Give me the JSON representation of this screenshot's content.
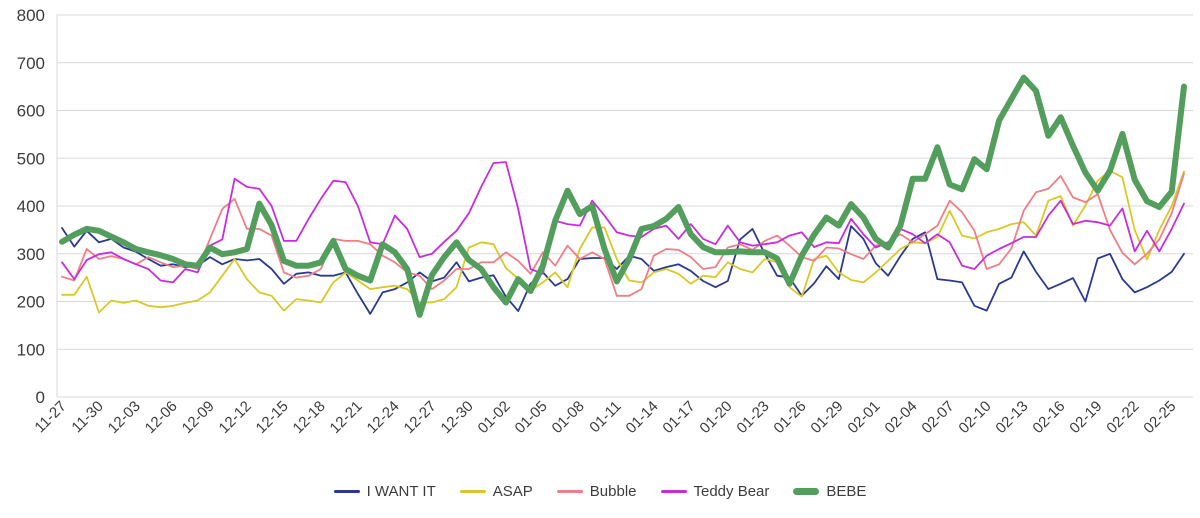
{
  "chart_data": {
    "type": "line",
    "title": "",
    "xlabel": "",
    "ylabel": "",
    "ylim": [
      0,
      800
    ],
    "y_ticks": [
      0,
      100,
      200,
      300,
      400,
      500,
      600,
      700,
      800
    ],
    "x_tick_every": 3,
    "grid": "horizontal",
    "legend_position": "bottom-center",
    "grid_color": "#d9d9d9",
    "axis_text_color": "#3d3d3d",
    "x": [
      "11-27",
      "11-28",
      "11-29",
      "11-30",
      "12-01",
      "12-02",
      "12-03",
      "12-04",
      "12-05",
      "12-06",
      "12-07",
      "12-08",
      "12-09",
      "12-10",
      "12-11",
      "12-12",
      "12-13",
      "12-14",
      "12-15",
      "12-16",
      "12-17",
      "12-18",
      "12-19",
      "12-20",
      "12-21",
      "12-22",
      "12-23",
      "12-24",
      "12-25",
      "12-26",
      "12-27",
      "12-28",
      "12-29",
      "12-30",
      "12-31",
      "01-01",
      "01-02",
      "01-03",
      "01-04",
      "01-05",
      "01-06",
      "01-07",
      "01-08",
      "01-09",
      "01-10",
      "01-11",
      "01-12",
      "01-13",
      "01-14",
      "01-15",
      "01-16",
      "01-17",
      "01-18",
      "01-19",
      "01-20",
      "01-21",
      "01-22",
      "01-23",
      "01-24",
      "01-25",
      "01-26",
      "01-27",
      "01-28",
      "01-29",
      "01-30",
      "01-31",
      "02-01",
      "02-02",
      "02-03",
      "02-04",
      "02-05",
      "02-06",
      "02-07",
      "02-08",
      "02-09",
      "02-10",
      "02-11",
      "02-12",
      "02-13",
      "02-14",
      "02-15",
      "02-16",
      "02-17",
      "02-18",
      "02-19",
      "02-20",
      "02-21",
      "02-22",
      "02-23",
      "02-24",
      "02-25",
      "02-26"
    ],
    "series": [
      {
        "name": "I WANT IT",
        "color": "#2b3a8f",
        "width": 1.8,
        "values": [
          354,
          315,
          348,
          324,
          331,
          313,
          304,
          289,
          275,
          278,
          272,
          275,
          293,
          278,
          289,
          286,
          289,
          268,
          237,
          258,
          261,
          254,
          254,
          261,
          216,
          174,
          219,
          226,
          240,
          261,
          242,
          250,
          282,
          242,
          250,
          255,
          210,
          180,
          237,
          261,
          233,
          247,
          289,
          291,
          291,
          268,
          296,
          289,
          264,
          272,
          278,
          264,
          243,
          230,
          243,
          330,
          352,
          300,
          254,
          250,
          212,
          238,
          274,
          247,
          358,
          331,
          280,
          254,
          295,
          331,
          345,
          247,
          244,
          240,
          191,
          181,
          237,
          250,
          305,
          262,
          226,
          237,
          249,
          200,
          290,
          300,
          247,
          219,
          230,
          244,
          262,
          300
        ]
      },
      {
        "name": "ASAP",
        "color": "#d8c927",
        "width": 1.8,
        "values": [
          214,
          214,
          252,
          177,
          202,
          197,
          202,
          191,
          188,
          191,
          197,
          202,
          219,
          254,
          289,
          247,
          219,
          212,
          181,
          205,
          202,
          198,
          240,
          261,
          244,
          226,
          230,
          233,
          226,
          198,
          198,
          205,
          230,
          313,
          324,
          320,
          270,
          248,
          223,
          240,
          261,
          230,
          310,
          355,
          355,
          289,
          244,
          240,
          261,
          268,
          258,
          237,
          254,
          251,
          282,
          268,
          261,
          289,
          282,
          230,
          210,
          289,
          296,
          261,
          245,
          240,
          261,
          285,
          310,
          324,
          322,
          335,
          390,
          338,
          332,
          345,
          352,
          362,
          366,
          338,
          411,
          421,
          359,
          401,
          453,
          474,
          460,
          350,
          288,
          350,
          400,
          472
        ]
      },
      {
        "name": "Bubble",
        "color": "#ef7f87",
        "width": 1.8,
        "values": [
          252,
          244,
          310,
          289,
          295,
          289,
          278,
          293,
          282,
          272,
          275,
          268,
          331,
          394,
          415,
          352,
          352,
          338,
          261,
          250,
          254,
          268,
          331,
          327,
          327,
          320,
          296,
          282,
          261,
          254,
          226,
          244,
          268,
          268,
          282,
          282,
          303,
          285,
          258,
          303,
          275,
          317,
          289,
          303,
          289,
          212,
          212,
          226,
          296,
          310,
          308,
          293,
          268,
          272,
          313,
          320,
          308,
          327,
          338,
          317,
          293,
          285,
          313,
          311,
          299,
          289,
          317,
          324,
          341,
          324,
          341,
          359,
          411,
          387,
          348,
          268,
          278,
          311,
          390,
          429,
          436,
          463,
          418,
          408,
          425,
          350,
          302,
          278,
          300,
          330,
          385,
          468
        ]
      },
      {
        "name": "Teddy Bear",
        "color": "#c62edb",
        "width": 1.8,
        "values": [
          282,
          247,
          287,
          299,
          303,
          289,
          278,
          268,
          244,
          240,
          268,
          261,
          317,
          330,
          457,
          440,
          436,
          400,
          327,
          327,
          373,
          415,
          453,
          450,
          400,
          324,
          320,
          380,
          352,
          293,
          300,
          325,
          348,
          385,
          440,
          490,
          492,
          394,
          268,
          258,
          369,
          362,
          359,
          411,
          380,
          345,
          338,
          335,
          352,
          359,
          331,
          362,
          331,
          320,
          359,
          324,
          317,
          320,
          324,
          338,
          345,
          314,
          324,
          322,
          373,
          341,
          313,
          324,
          352,
          341,
          322,
          341,
          324,
          275,
          268,
          296,
          310,
          322,
          335,
          335,
          380,
          411,
          362,
          369,
          366,
          359,
          395,
          305,
          348,
          305,
          352,
          405
        ]
      },
      {
        "name": "BEBE",
        "color": "#539e5d",
        "width": 6,
        "values": [
          325,
          340,
          352,
          348,
          336,
          324,
          310,
          303,
          297,
          289,
          278,
          275,
          313,
          299,
          303,
          310,
          405,
          360,
          285,
          275,
          275,
          282,
          327,
          268,
          254,
          244,
          320,
          303,
          268,
          172,
          255,
          293,
          324,
          287,
          268,
          230,
          198,
          247,
          222,
          275,
          369,
          432,
          383,
          400,
          310,
          242,
          289,
          352,
          358,
          373,
          398,
          341,
          314,
          303,
          303,
          305,
          303,
          303,
          290,
          237,
          296,
          340,
          376,
          359,
          404,
          376,
          331,
          313,
          359,
          457,
          457,
          523,
          445,
          435,
          498,
          477,
          579,
          624,
          669,
          641,
          547,
          586,
          526,
          470,
          432,
          474,
          551,
          455,
          410,
          398,
          430,
          650
        ]
      }
    ]
  }
}
